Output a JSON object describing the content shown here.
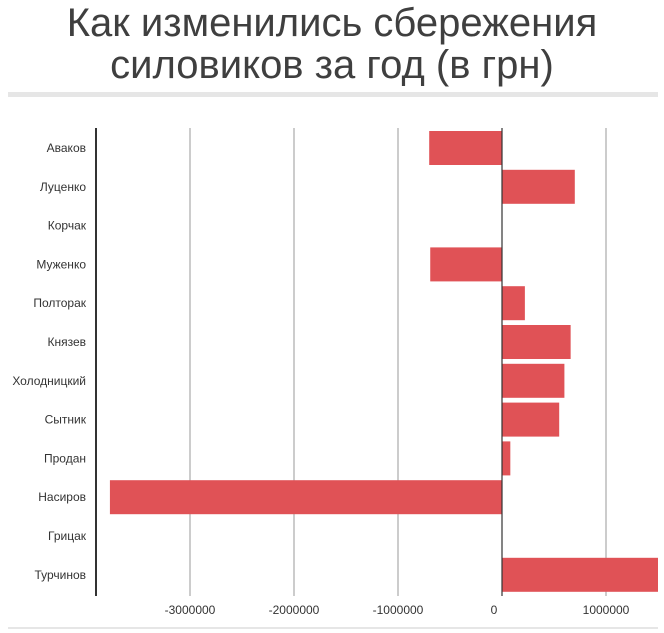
{
  "title": "Как изменились сбережения силовиков за год (в грн)",
  "colors": {
    "bar": "#e05256",
    "grid": "#9a9a9a",
    "axis": "#333333",
    "title_rule": "#e6e6e6"
  },
  "chart_data": {
    "type": "bar",
    "orientation": "horizontal",
    "title": "Как изменились сбережения силовиков за год (в грн)",
    "xlabel": "",
    "ylabel": "",
    "categories": [
      "Аваков",
      "Луценко",
      "Корчак",
      "Муженко",
      "Полторак",
      "Князев",
      "Холодницкий",
      "Сытник",
      "Продан",
      "Насиров",
      "Грицак",
      "Турчинов"
    ],
    "values": [
      -700000,
      700000,
      0,
      -690000,
      220000,
      660000,
      600000,
      550000,
      80000,
      -3770000,
      0,
      1500000
    ],
    "xlim": [
      -3850000,
      1500000
    ],
    "xticks": [
      -3000000,
      -2000000,
      -1000000,
      0,
      1000000
    ],
    "xtick_labels": [
      "-3000000",
      "-2000000",
      "-1000000",
      "0",
      "1000000"
    ],
    "grid": true,
    "legend": "none"
  }
}
